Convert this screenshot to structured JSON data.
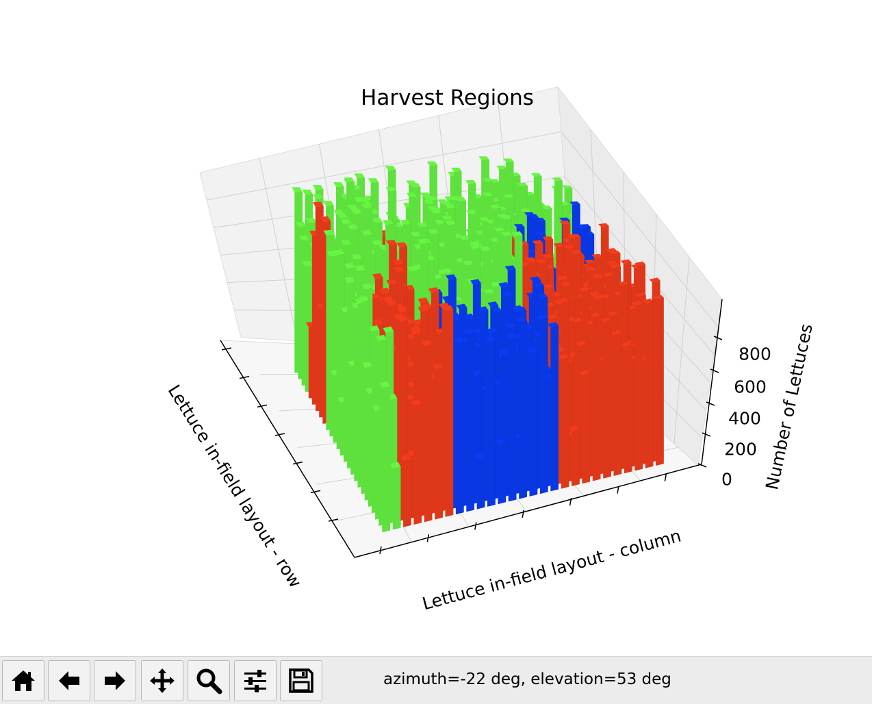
{
  "chart_data": {
    "type": "bar3d",
    "title": "Harvest Regions",
    "xlabel": "Lettuce in-field layout - column",
    "ylabel": "Lettuce in-field layout - row",
    "zlabel": "Number of Lettuces",
    "zticks": [
      "0",
      "200",
      "400",
      "600",
      "800"
    ],
    "zlim": [
      0,
      900
    ],
    "grid": true,
    "view": {
      "azimuth": -22,
      "elevation": 53
    },
    "series": [
      {
        "name": "",
        "color": "#0a3cf5"
      },
      {
        "name": "",
        "color": "#f23c1c"
      },
      {
        "name": "",
        "color": "#66f542"
      }
    ],
    "grid_size": [
      30,
      30
    ],
    "regions": [
      {
        "series": 2,
        "value": 820,
        "area": "back-center"
      },
      {
        "series": 1,
        "value": 700,
        "area": "right"
      },
      {
        "series": 0,
        "value": 720,
        "area": "front-center"
      },
      {
        "series": 1,
        "value": 780,
        "area": "front-left"
      },
      {
        "series": 2,
        "value": 760,
        "area": "left"
      },
      {
        "series": 0,
        "value": 650,
        "area": "left-edge"
      }
    ]
  },
  "toolbar": {
    "buttons": [
      {
        "name": "home-button",
        "icon": "home-icon"
      },
      {
        "name": "back-button",
        "icon": "arrow-left-icon"
      },
      {
        "name": "forward-button",
        "icon": "arrow-right-icon"
      },
      {
        "name": "pan-button",
        "icon": "move-icon"
      },
      {
        "name": "zoom-button",
        "icon": "magnifier-icon"
      },
      {
        "name": "configure-subplots-button",
        "icon": "sliders-icon"
      },
      {
        "name": "save-button",
        "icon": "floppy-disk-icon"
      }
    ],
    "status": "azimuth=-22 deg, elevation=53 deg"
  }
}
